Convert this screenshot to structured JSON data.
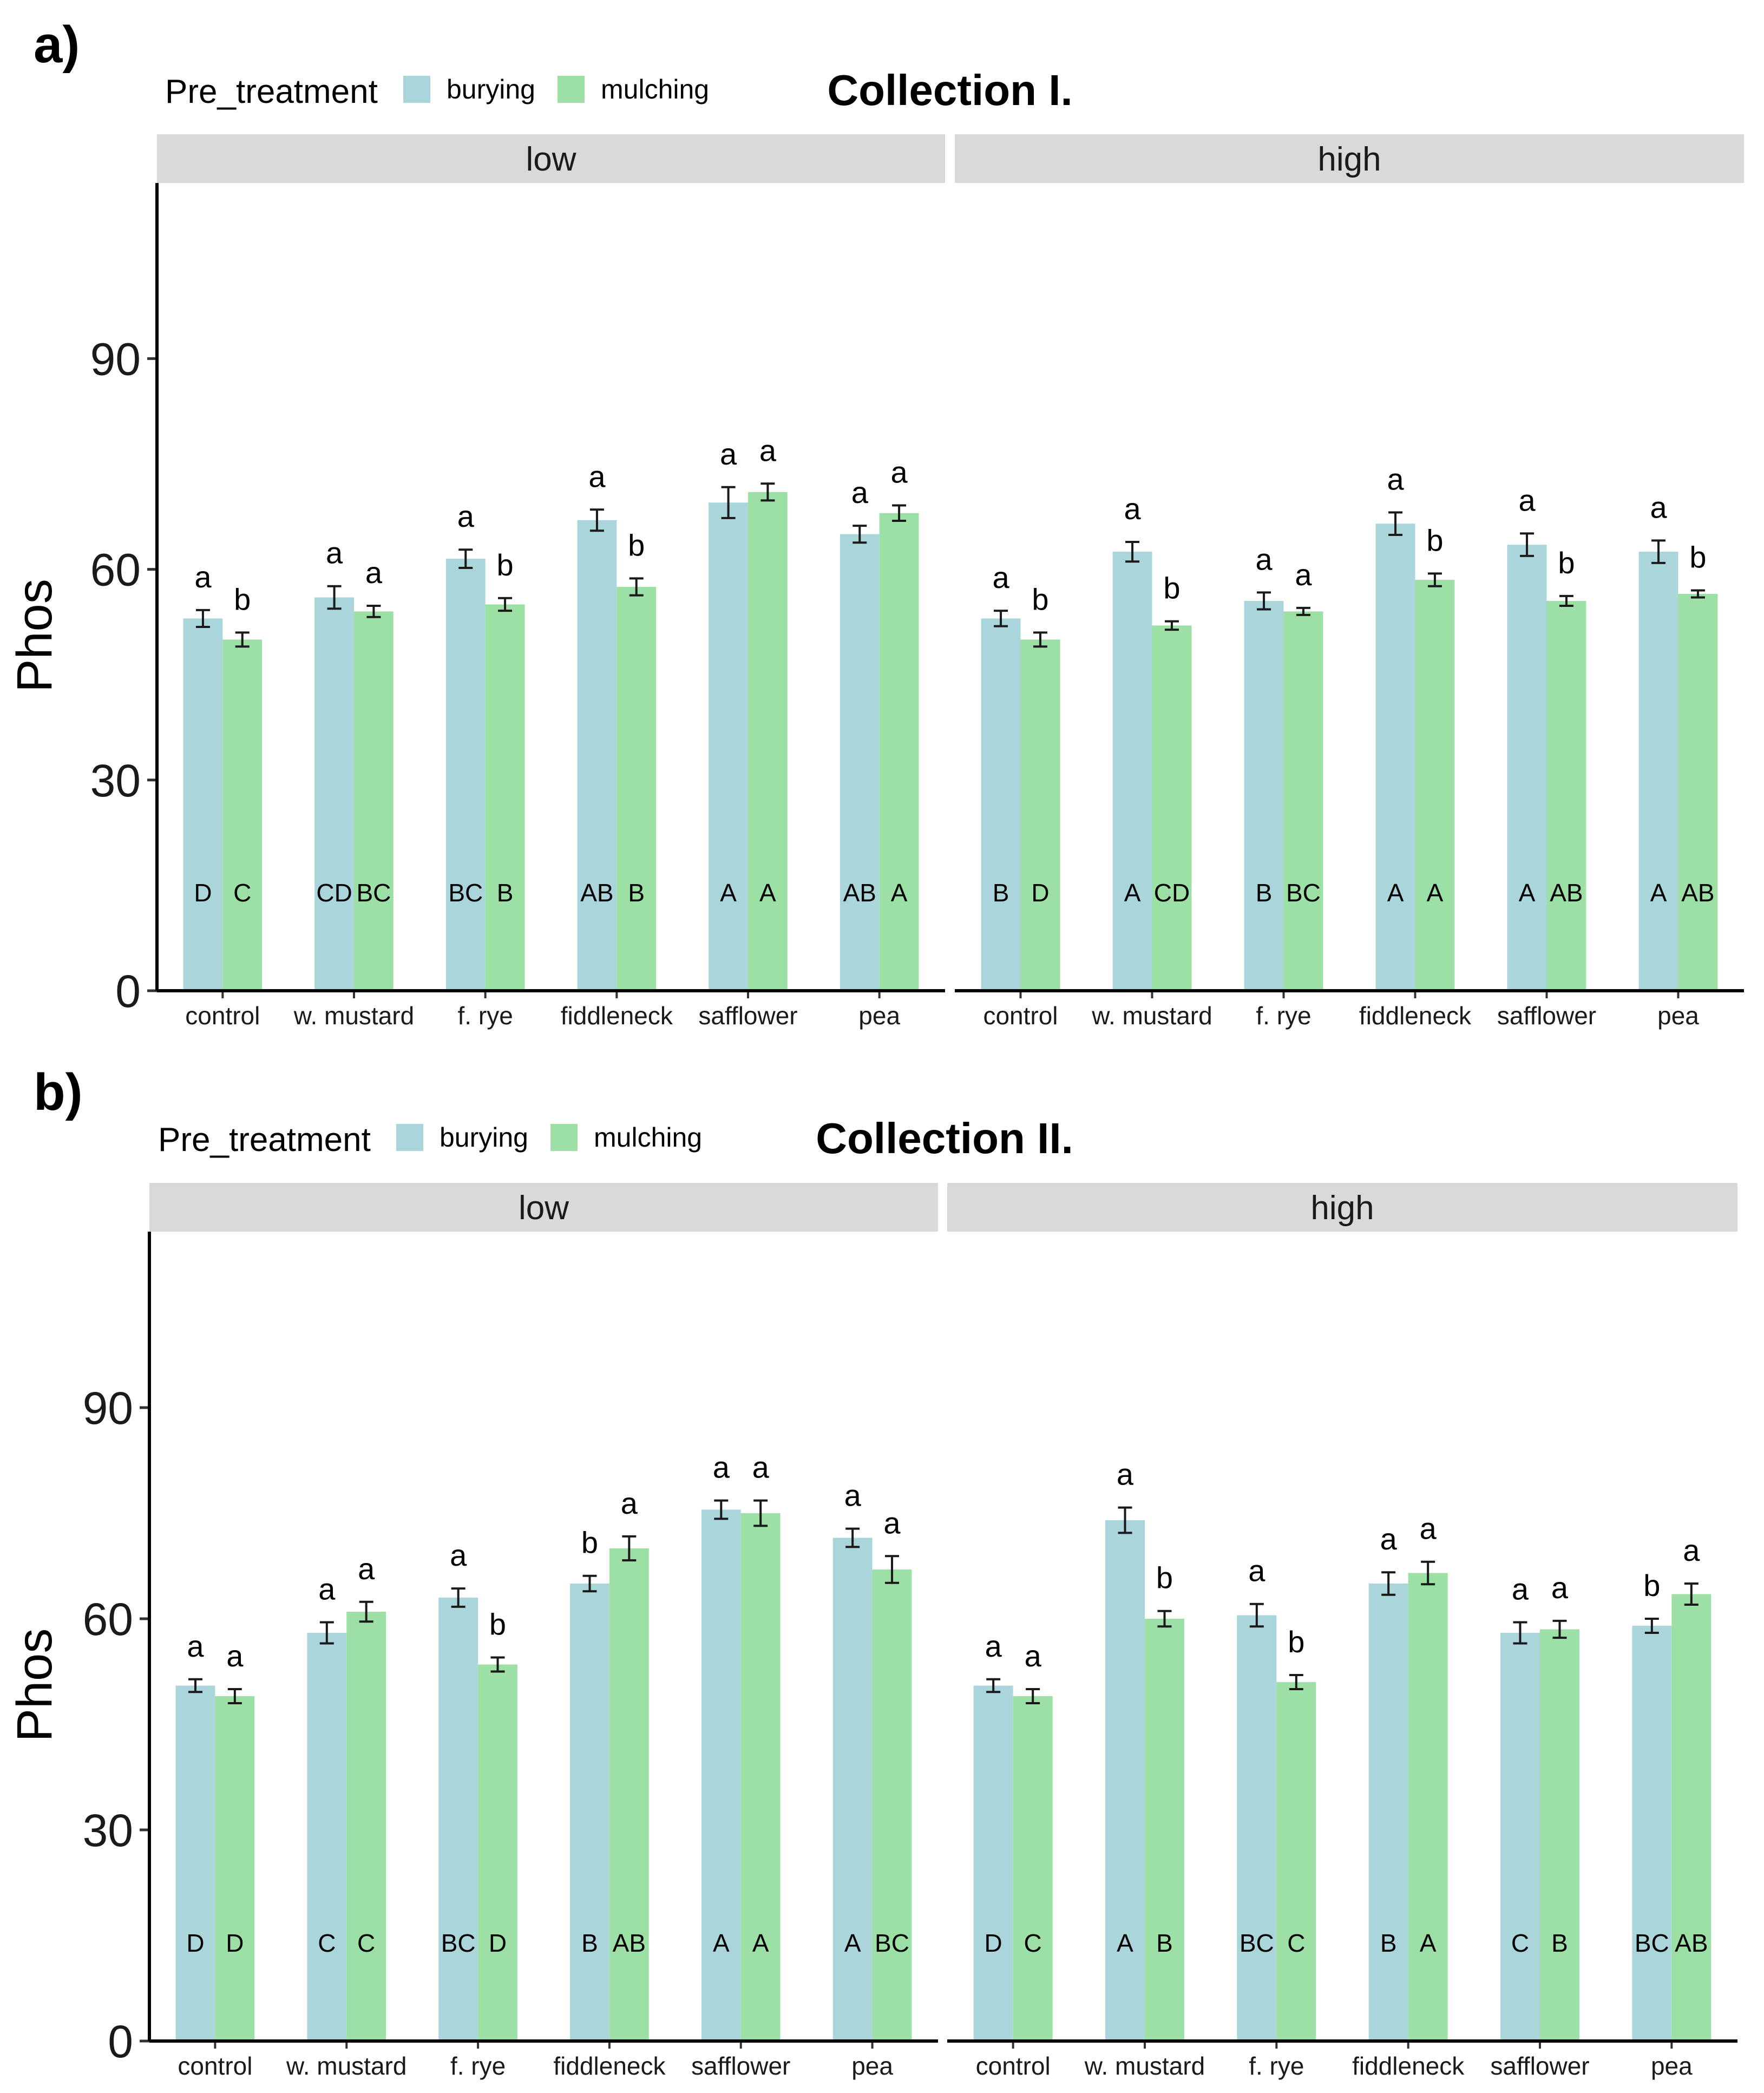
{
  "colors": {
    "burying": "#aad5da",
    "mulching": "#9ce0a6",
    "strip": "#d9d9d9"
  },
  "legend": {
    "title": "Pre_treatment",
    "entries": [
      "burying",
      "mulching"
    ]
  },
  "chart_data": [
    {
      "type": "bar",
      "panel_label": "a)",
      "title": "Collection I.",
      "ylabel": "Phos",
      "xlabel": "",
      "ylim": [
        0,
        115
      ],
      "yticks": [
        0,
        30,
        60,
        90
      ],
      "legend_position": "top-left",
      "facets": [
        {
          "name": "low",
          "categories": [
            "control",
            "w. mustard",
            "f. rye",
            "fiddleneck",
            "safflower",
            "pea"
          ],
          "series": [
            {
              "name": "burying",
              "values": [
                53,
                56,
                61.5,
                67,
                69.5,
                65
              ],
              "errors": [
                1.2,
                1.6,
                1.3,
                1.5,
                2.2,
                1.2
              ],
              "sig_lower": [
                "a",
                "a",
                "a",
                "a",
                "a",
                "a"
              ],
              "sig_upper": [
                "D",
                "CD",
                "BC",
                "AB",
                "A",
                "AB"
              ]
            },
            {
              "name": "mulching",
              "values": [
                50,
                54,
                55,
                57.5,
                71,
                68
              ],
              "errors": [
                1.0,
                0.8,
                0.9,
                1.2,
                1.2,
                1.1
              ],
              "sig_lower": [
                "b",
                "a",
                "b",
                "b",
                "a",
                "a"
              ],
              "sig_upper": [
                "C",
                "BC",
                "B",
                "B",
                "A",
                "A"
              ]
            }
          ]
        },
        {
          "name": "high",
          "categories": [
            "control",
            "w. mustard",
            "f. rye",
            "fiddleneck",
            "safflower",
            "pea"
          ],
          "series": [
            {
              "name": "burying",
              "values": [
                53,
                62.5,
                55.5,
                66.5,
                63.5,
                62.5
              ],
              "errors": [
                1.1,
                1.4,
                1.2,
                1.6,
                1.6,
                1.6
              ],
              "sig_lower": [
                "a",
                "a",
                "a",
                "a",
                "a",
                "a"
              ],
              "sig_upper": [
                "B",
                "A",
                "B",
                "A",
                "A",
                "A"
              ]
            },
            {
              "name": "mulching",
              "values": [
                50,
                52,
                54,
                58.5,
                55.5,
                56.5
              ],
              "errors": [
                1.0,
                0.6,
                0.5,
                0.9,
                0.7,
                0.5
              ],
              "sig_lower": [
                "b",
                "b",
                "a",
                "b",
                "b",
                "b"
              ],
              "sig_upper": [
                "D",
                "CD",
                "BC",
                "A",
                "AB",
                "AB"
              ]
            }
          ]
        }
      ]
    },
    {
      "type": "bar",
      "panel_label": "b)",
      "title": "Collection II.",
      "ylabel": "Phos",
      "xlabel": "",
      "ylim": [
        0,
        115
      ],
      "yticks": [
        0,
        30,
        60,
        90
      ],
      "legend_position": "top-left",
      "facets": [
        {
          "name": "low",
          "categories": [
            "control",
            "w. mustard",
            "f. rye",
            "fiddleneck",
            "safflower",
            "pea"
          ],
          "series": [
            {
              "name": "burying",
              "values": [
                50.5,
                58,
                63,
                65,
                75.5,
                71.5
              ],
              "errors": [
                0.9,
                1.5,
                1.3,
                1.1,
                1.3,
                1.3
              ],
              "sig_lower": [
                "a",
                "a",
                "a",
                "b",
                "a",
                "a"
              ],
              "sig_upper": [
                "D",
                "C",
                "BC",
                "B",
                "A",
                "A"
              ]
            },
            {
              "name": "mulching",
              "values": [
                49,
                61,
                53.5,
                70,
                75,
                67
              ],
              "errors": [
                1.0,
                1.4,
                1.0,
                1.7,
                1.8,
                1.9
              ],
              "sig_lower": [
                "a",
                "a",
                "b",
                "a",
                "a",
                "a"
              ],
              "sig_upper": [
                "D",
                "C",
                "D",
                "AB",
                "A",
                "BC"
              ]
            }
          ]
        },
        {
          "name": "high",
          "categories": [
            "control",
            "w. mustard",
            "f. rye",
            "fiddleneck",
            "safflower",
            "pea"
          ],
          "series": [
            {
              "name": "burying",
              "values": [
                50.5,
                74,
                60.5,
                65,
                58,
                59
              ],
              "errors": [
                0.9,
                1.8,
                1.6,
                1.6,
                1.5,
                1.0
              ],
              "sig_lower": [
                "a",
                "a",
                "a",
                "a",
                "a",
                "b"
              ],
              "sig_upper": [
                "D",
                "A",
                "BC",
                "B",
                "C",
                "BC"
              ]
            },
            {
              "name": "mulching",
              "values": [
                49,
                60,
                51,
                66.5,
                58.5,
                63.5
              ],
              "errors": [
                1.0,
                1.1,
                1.0,
                1.6,
                1.2,
                1.5
              ],
              "sig_lower": [
                "a",
                "b",
                "b",
                "a",
                "a",
                "a"
              ],
              "sig_upper": [
                "C",
                "B",
                "C",
                "A",
                "B",
                "AB"
              ]
            }
          ]
        }
      ]
    }
  ]
}
